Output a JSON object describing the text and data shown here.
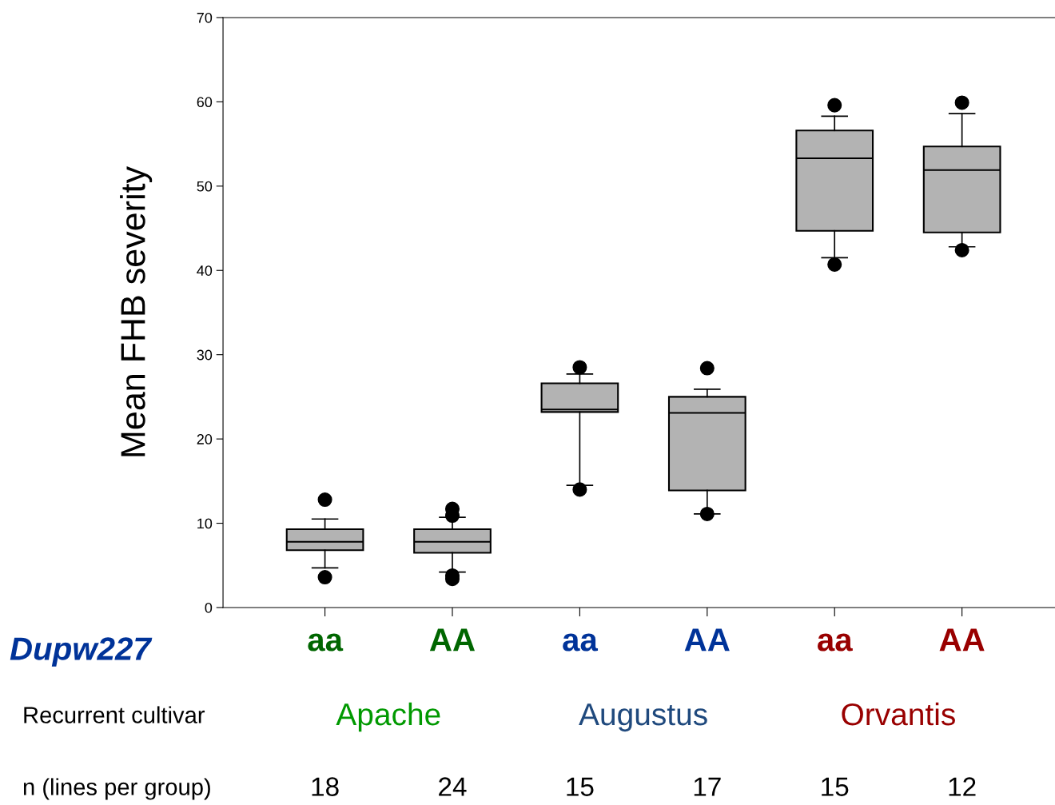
{
  "chart_data": {
    "type": "box",
    "xlabel": "Dupw227",
    "ylabel": "Mean FHB severity",
    "categories": [
      "aa",
      "AA",
      "aa",
      "AA",
      "aa",
      "AA"
    ],
    "series": [
      {
        "color": "#b3b3b3",
        "boxes": [
          {
            "low": 4.7,
            "q1": 6.8,
            "median": 7.8,
            "q3": 9.3,
            "high": 10.5,
            "outliers": [
              12.8,
              3.6
            ]
          },
          {
            "low": 4.2,
            "q1": 6.5,
            "median": 7.8,
            "q3": 9.3,
            "high": 10.7,
            "outliers": [
              11.7,
              10.9,
              3.8,
              3.4
            ]
          },
          {
            "low": 14.5,
            "q1": 23.2,
            "median": 23.5,
            "q3": 26.6,
            "high": 27.7,
            "outliers": [
              28.5,
              14.0
            ]
          },
          {
            "low": 11.1,
            "q1": 13.9,
            "median": 23.1,
            "q3": 25.0,
            "high": 25.9,
            "outliers": [
              28.4,
              11.1
            ]
          },
          {
            "low": 41.5,
            "q1": 44.7,
            "median": 53.3,
            "q3": 56.6,
            "high": 58.3,
            "outliers": [
              59.6,
              40.7
            ]
          },
          {
            "low": 42.8,
            "q1": 44.5,
            "median": 51.9,
            "q3": 54.7,
            "high": 58.6,
            "outliers": [
              59.9,
              42.4
            ]
          }
        ]
      }
    ],
    "ylim": [
      0,
      70
    ],
    "yticks": [
      0,
      10,
      20,
      30,
      40,
      50,
      60,
      70
    ],
    "grid": false,
    "legend": false,
    "annotations": [
      "Recurrent cultivar",
      "Apache",
      "Augustus",
      "Orvantis",
      "n (lines per group)",
      "18",
      "24",
      "15",
      "17",
      "15",
      "12"
    ]
  }
}
